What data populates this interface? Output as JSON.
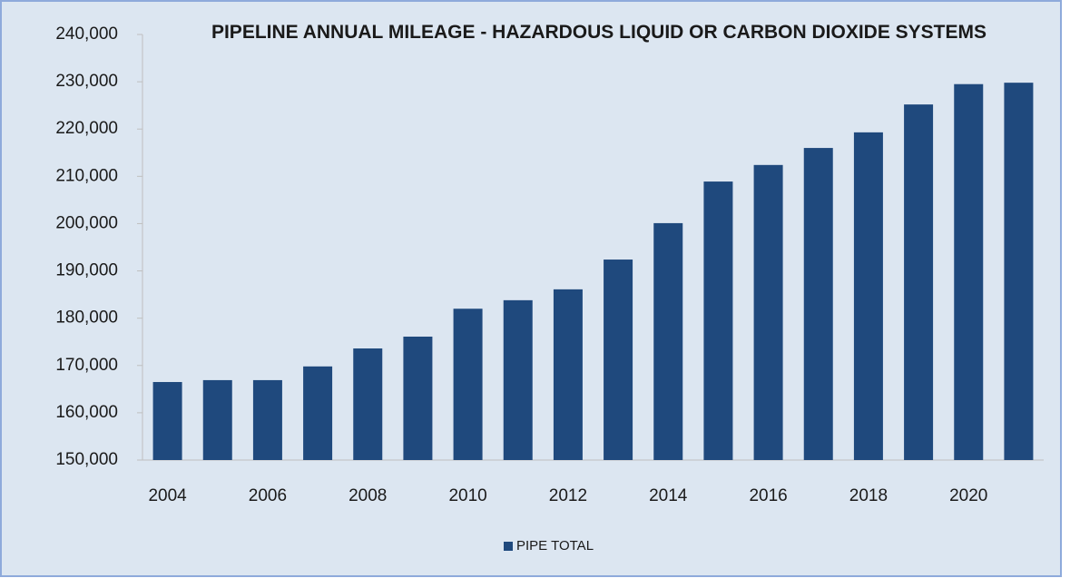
{
  "chart_data": {
    "type": "bar",
    "title": "PIPELINE ANNUAL MILEAGE - HAZARDOUS LIQUID OR CARBON DIOXIDE SYSTEMS",
    "categories": [
      "2004",
      null,
      "2006",
      null,
      "2008",
      null,
      "2010",
      null,
      "2012",
      null,
      "2014",
      null,
      "2016",
      null,
      "2018",
      null,
      "2020",
      null
    ],
    "series": [
      {
        "name": "PIPE TOTAL",
        "color": "#1f497d",
        "values": [
          166500,
          166900,
          166900,
          169800,
          173600,
          176100,
          182000,
          183800,
          186100,
          192400,
          200100,
          208900,
          212400,
          216000,
          219300,
          225200,
          229500,
          229800
        ]
      }
    ],
    "ylim": [
      150000,
      240000
    ],
    "yticks": [
      {
        "value": 150000,
        "label": "150,000"
      },
      {
        "value": 160000,
        "label": "160,000"
      },
      {
        "value": 170000,
        "label": "170,000"
      },
      {
        "value": 180000,
        "label": "180,000"
      },
      {
        "value": 190000,
        "label": "190,000"
      },
      {
        "value": 200000,
        "label": "200,000"
      },
      {
        "value": 210000,
        "label": "210,000"
      },
      {
        "value": 220000,
        "label": "220,000"
      },
      {
        "value": 230000,
        "label": "230,000"
      },
      {
        "value": 240000,
        "label": "240,000"
      }
    ],
    "legend": "bottom"
  }
}
